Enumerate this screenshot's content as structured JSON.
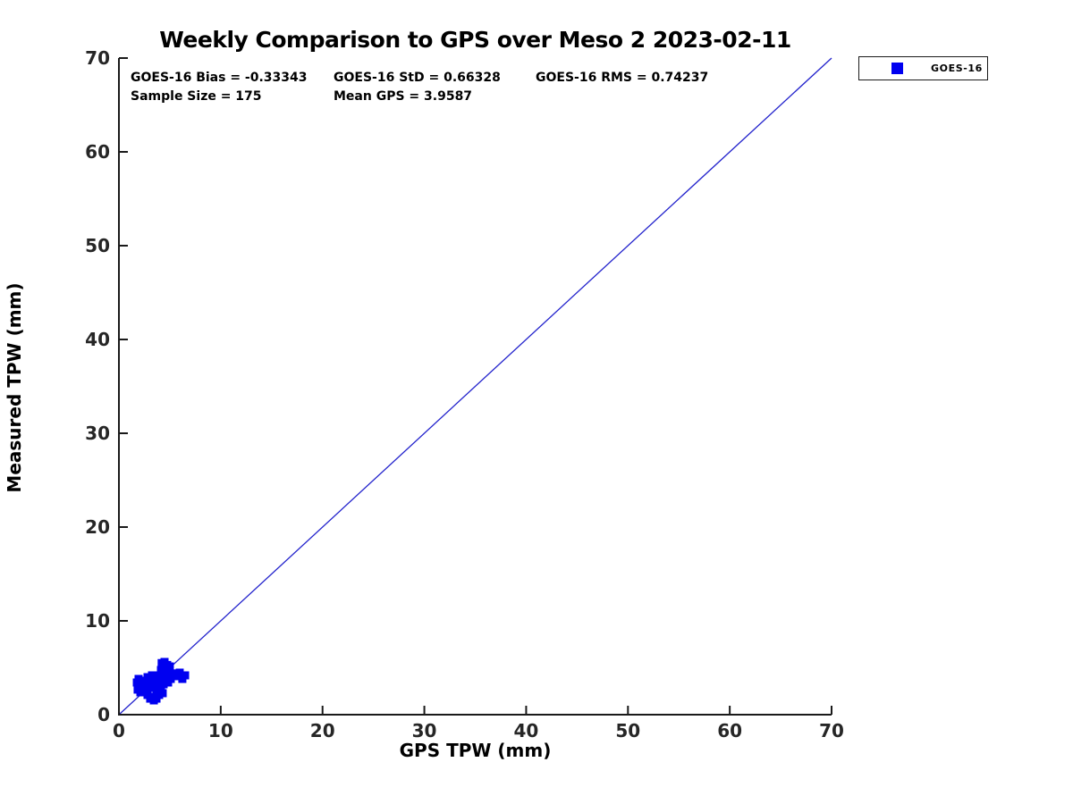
{
  "chart_data": {
    "type": "scatter",
    "title": "Weekly Comparison to GPS over Meso 2 2023-02-11",
    "xlabel": "GPS TPW (mm)",
    "ylabel": "Measured TPW (mm)",
    "xlim": [
      0,
      70
    ],
    "ylim": [
      0,
      70
    ],
    "xticks": [
      0,
      10,
      20,
      30,
      40,
      50,
      60,
      70
    ],
    "yticks": [
      0,
      10,
      20,
      30,
      40,
      50,
      60,
      70
    ],
    "grid": false,
    "annotations": {
      "bias": "GOES-16 Bias = -0.33343",
      "std": "GOES-16 StD = 0.66328",
      "rms": "GOES-16 RMS = 0.74237",
      "sample_size": "Sample Size = 175",
      "mean_gps": "Mean GPS = 3.9587"
    },
    "colors": {
      "marker": "#0000f0",
      "identity_line": "#2222cc",
      "axis": "#1a1a1a",
      "tick_text": "#262626"
    },
    "identity_line": {
      "from": [
        0,
        0
      ],
      "to": [
        70,
        70
      ]
    },
    "legend": {
      "position": "outside-upper-right",
      "entries": [
        {
          "name": "GOES-16",
          "marker": "square",
          "color": "#0000f0"
        }
      ]
    },
    "series": [
      {
        "name": "GOES-16",
        "marker": "square",
        "color": "#0000f0",
        "points": [
          [
            4.48,
            5.62
          ],
          [
            4.2,
            5.5
          ],
          [
            4.74,
            5.3
          ],
          [
            5.0,
            5.14
          ],
          [
            4.3,
            5.0
          ],
          [
            4.74,
            4.76
          ],
          [
            4.13,
            4.76
          ],
          [
            4.57,
            4.57
          ],
          [
            5.0,
            4.29
          ],
          [
            3.95,
            4.19
          ],
          [
            5.97,
            4.48
          ],
          [
            6.5,
            4.19
          ],
          [
            6.23,
            3.81
          ],
          [
            5.8,
            4.1
          ],
          [
            5.48,
            4.3
          ],
          [
            5.2,
            4.4
          ],
          [
            3.25,
            4.19
          ],
          [
            2.81,
            4.0
          ],
          [
            3.43,
            3.81
          ],
          [
            3.78,
            3.62
          ],
          [
            4.22,
            3.81
          ],
          [
            4.65,
            4.0
          ],
          [
            5.09,
            3.81
          ],
          [
            4.83,
            3.43
          ],
          [
            4.39,
            3.24
          ],
          [
            3.95,
            3.05
          ],
          [
            3.51,
            3.24
          ],
          [
            3.07,
            3.43
          ],
          [
            2.63,
            3.24
          ],
          [
            3.25,
            2.86
          ],
          [
            3.69,
            2.67
          ],
          [
            4.13,
            2.67
          ],
          [
            1.93,
            3.81
          ],
          [
            1.76,
            3.43
          ],
          [
            2.02,
            3.05
          ],
          [
            1.84,
            2.67
          ],
          [
            2.2,
            3.62
          ],
          [
            2.37,
            2.86
          ],
          [
            2.11,
            2.38
          ],
          [
            2.55,
            2.48
          ],
          [
            2.81,
            2.67
          ],
          [
            2.81,
            2.1
          ],
          [
            3.25,
            1.9
          ],
          [
            3.69,
            1.71
          ],
          [
            3.07,
            1.71
          ],
          [
            3.43,
            1.52
          ],
          [
            3.95,
            2.1
          ],
          [
            4.3,
            2.29
          ]
        ]
      }
    ]
  }
}
